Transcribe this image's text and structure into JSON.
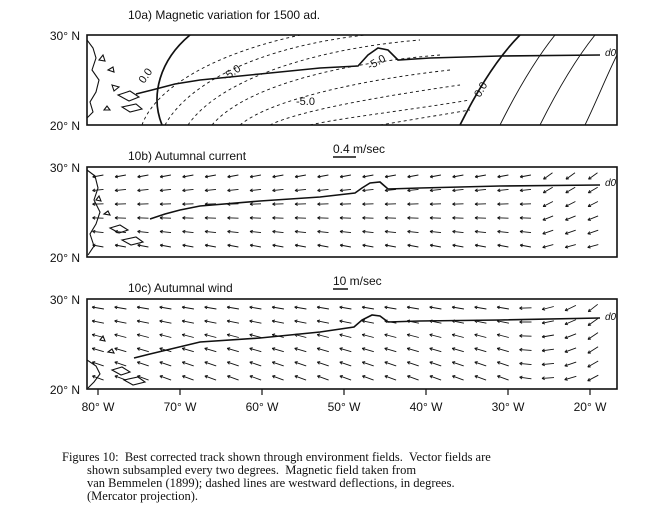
{
  "panels": [
    {
      "id": "10a",
      "title": "10a)  Magnetic variation for 1500 ad.",
      "lat_top": "30° N",
      "lat_bottom": "20° N",
      "scale_label": "",
      "contour_labels": [
        "0.0",
        "-5.0",
        "-5.0",
        "-5.0",
        "0.0"
      ],
      "end_label": "d0"
    },
    {
      "id": "10b",
      "title": "10b)  Autumnal current",
      "lat_top": "30° N",
      "lat_bottom": "20° N",
      "scale_label": "0.4 m/sec",
      "end_label": "d0"
    },
    {
      "id": "10c",
      "title": "10c)  Autumnal wind",
      "lat_top": "30° N",
      "lat_bottom": "20° N",
      "scale_label": "10 m/sec",
      "end_label": "d0"
    }
  ],
  "longitude_ticks": [
    "80° W",
    "70° W",
    "60° W",
    "50° W",
    "40° W",
    "30° W",
    "20° W"
  ],
  "caption_lines": [
    "Figures 10:  Best corrected track shown through environment fields.  Vector fields are",
    "        shown subsampled every two degrees.  Magnetic field taken from",
    "        van Bemmelen (1899); dashed lines are westward deflections, in degrees.",
    "        (Mercator projection)."
  ]
}
